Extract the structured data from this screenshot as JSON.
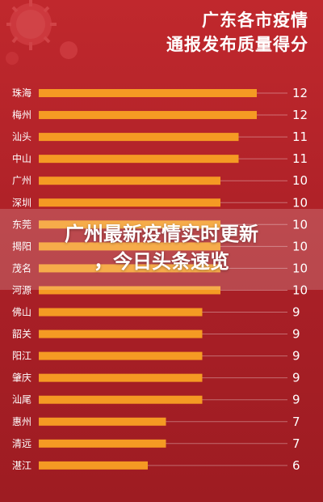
{
  "header": {
    "title_line1": "广东各市疫情",
    "title_line2": "通报发布质量得分"
  },
  "overlay": {
    "line1": "广州最新疫情实时更新",
    "line2": "，今日头条速览"
  },
  "colors": {
    "background": "#b3232a",
    "bar": "#f59a23",
    "text": "#ffffff"
  },
  "decoration": "virus-icon",
  "chart_data": {
    "type": "bar",
    "orientation": "horizontal",
    "title": "广东各市疫情通报发布质量得分",
    "categories": [
      "珠海",
      "梅州",
      "汕头",
      "中山",
      "广州",
      "深圳",
      "东莞",
      "揭阳",
      "茂名",
      "河源",
      "佛山",
      "韶关",
      "阳江",
      "肇庆",
      "汕尾",
      "惠州",
      "清远",
      "湛江"
    ],
    "values": [
      12,
      12,
      11,
      11,
      10,
      10,
      10,
      10,
      10,
      10,
      9,
      9,
      9,
      9,
      9,
      7,
      7,
      6
    ],
    "xlim": [
      0,
      13
    ],
    "grid": false,
    "legend": "none"
  }
}
